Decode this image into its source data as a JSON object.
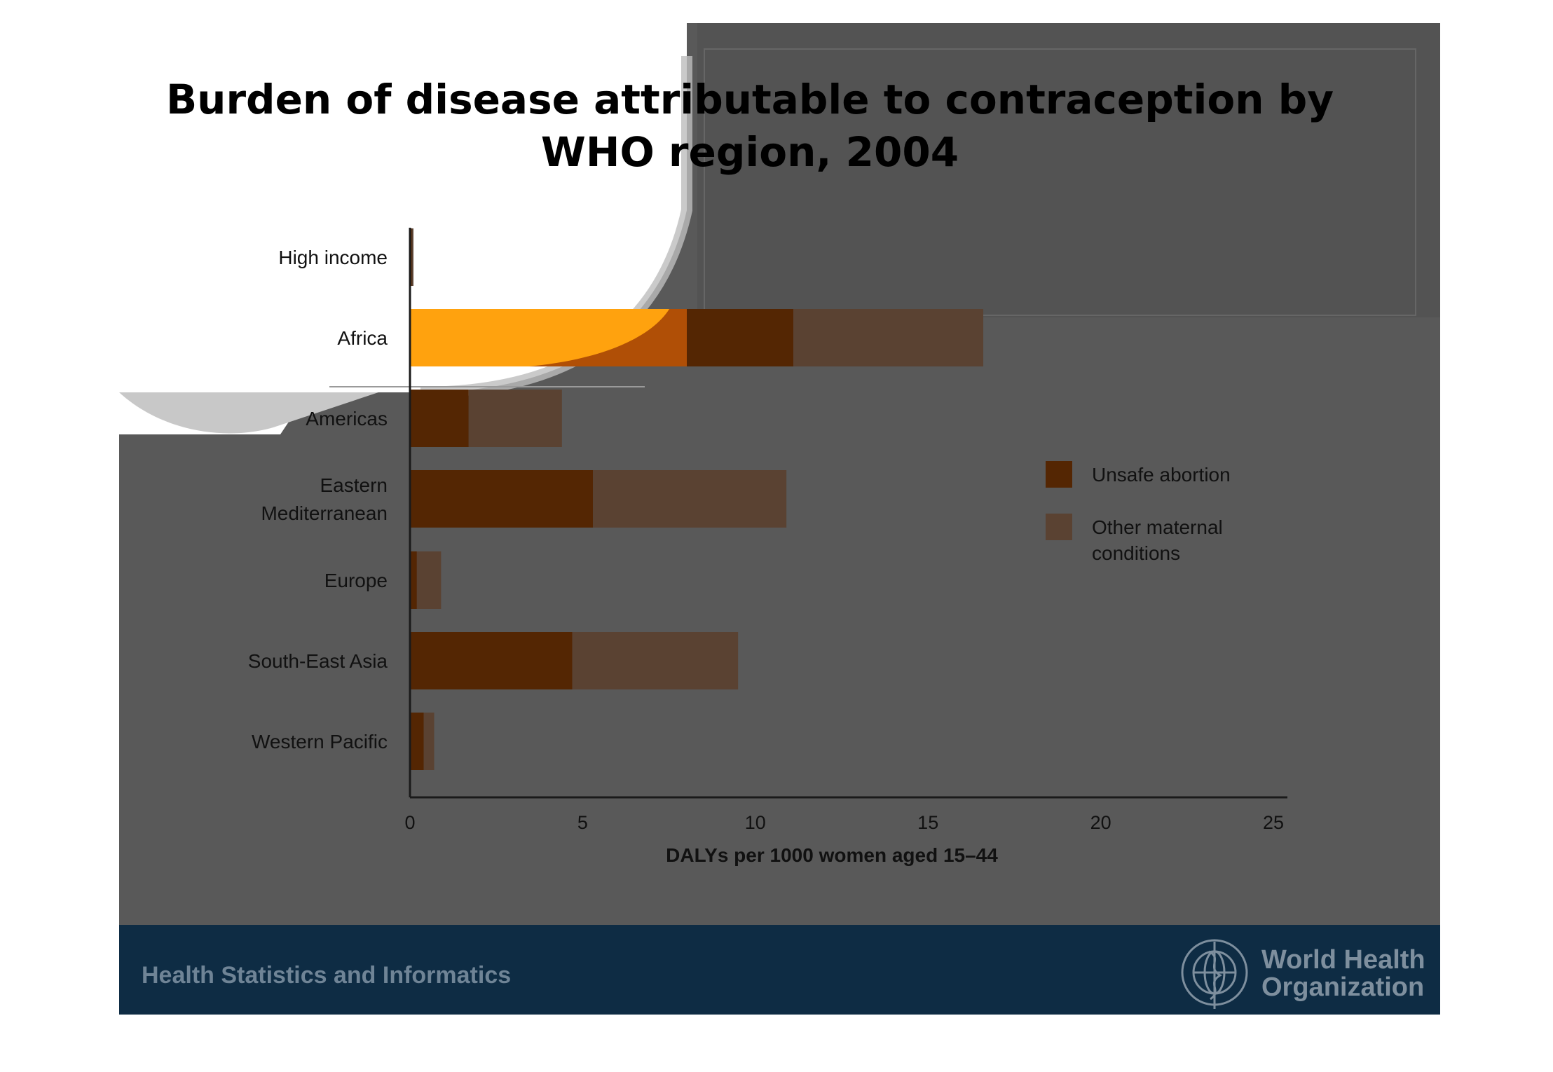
{
  "colors": {
    "unsafe": "#542603",
    "other": "#5a4232",
    "africa_highlight": "#ffa20e",
    "footer_bg": "#0e2c44",
    "slide_bg": "#595959"
  },
  "logo_text": "World Health Organization",
  "footer": {
    "text": "Health Statistics and Informatics"
  },
  "organization": {
    "line1": "World Health",
    "line2": "Organization"
  },
  "chart_data": {
    "type": "bar",
    "orientation": "horizontal",
    "stacked": true,
    "title_lines": [
      "Burden of disease attributable to contraception by",
      "WHO region, 2004"
    ],
    "xlabel": "DALYs per 1000 women aged 15–44",
    "ylabel": "",
    "xlim": [
      0,
      25
    ],
    "xticks": [
      "0",
      "5",
      "10",
      "15",
      "20",
      "25"
    ],
    "categories": [
      {
        "id": "high-income",
        "lines": [
          "High income"
        ]
      },
      {
        "id": "africa",
        "lines": [
          "Africa"
        ]
      },
      {
        "id": "americas",
        "lines": [
          "Americas"
        ]
      },
      {
        "id": "eastern-mediterranean",
        "lines": [
          "Eastern",
          "Mediterranean"
        ]
      },
      {
        "id": "europe",
        "lines": [
          "Europe"
        ]
      },
      {
        "id": "south-east-asia",
        "lines": [
          "South-East Asia"
        ]
      },
      {
        "id": "western-pacific",
        "lines": [
          "Western Pacific"
        ]
      }
    ],
    "series": [
      {
        "name": "Unsafe abortion",
        "values": [
          0.05,
          11.1,
          1.7,
          5.3,
          0.2,
          4.7,
          0.4
        ]
      },
      {
        "name": "Other maternal conditions",
        "values": [
          0.05,
          5.5,
          2.7,
          5.6,
          0.7,
          4.8,
          0.3
        ]
      }
    ],
    "legend": {
      "position": "right",
      "items": [
        {
          "lines": [
            "Unsafe abortion"
          ]
        },
        {
          "lines": [
            "Other maternal",
            "conditions"
          ]
        }
      ]
    }
  }
}
